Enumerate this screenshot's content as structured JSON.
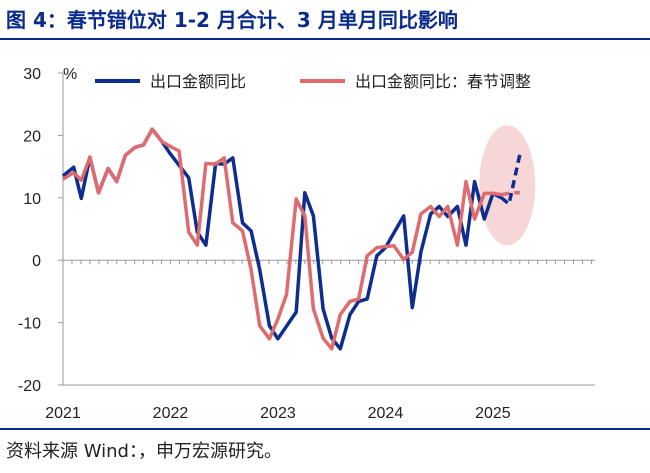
{
  "title": "图 4：春节错位对 1-2 月合计、3 月单月同比影响",
  "source": "资料来源 Wind：，申万宏源研究。",
  "colors": {
    "accent": "#0a2a8c",
    "series_blue": "#0d2d8f",
    "series_red": "#e06b6f",
    "highlight": "#f6d6d6"
  },
  "chart_data": {
    "type": "line",
    "unit": "%",
    "ylim": [
      -20,
      30
    ],
    "yticks": [
      "30",
      "20",
      "10",
      "0",
      "-10",
      "-20"
    ],
    "xticks": [
      "2021",
      "2022",
      "2023",
      "2024",
      "2025"
    ],
    "xlim": [
      2021.0,
      2025.45
    ],
    "series": [
      {
        "name": "出口金额同比",
        "color": "#0d2d8f",
        "points": [
          [
            2021.0,
            13.5
          ],
          [
            2021.1,
            14.9
          ],
          [
            2021.17,
            9.9
          ],
          [
            2021.25,
            16.5
          ],
          [
            2021.33,
            10.8
          ],
          [
            2021.42,
            14.7
          ],
          [
            2021.5,
            12.6
          ],
          [
            2021.58,
            16.8
          ],
          [
            2021.67,
            18.1
          ],
          [
            2021.75,
            18.5
          ],
          [
            2021.83,
            21.0
          ],
          [
            2021.92,
            19.0
          ],
          [
            2022.0,
            17.0
          ],
          [
            2022.17,
            13.2
          ],
          [
            2022.25,
            4.5
          ],
          [
            2022.33,
            2.4
          ],
          [
            2022.42,
            15.5
          ],
          [
            2022.5,
            15.4
          ],
          [
            2022.58,
            16.4
          ],
          [
            2022.67,
            6.0
          ],
          [
            2022.75,
            4.7
          ],
          [
            2022.83,
            -1.5
          ],
          [
            2022.92,
            -10.5
          ],
          [
            2023.0,
            -12.6
          ],
          [
            2023.17,
            -8.3
          ],
          [
            2023.25,
            10.8
          ],
          [
            2023.33,
            7.1
          ],
          [
            2023.42,
            -7.8
          ],
          [
            2023.5,
            -12.5
          ],
          [
            2023.58,
            -14.2
          ],
          [
            2023.67,
            -8.7
          ],
          [
            2023.75,
            -6.6
          ],
          [
            2023.83,
            -6.2
          ],
          [
            2023.92,
            0.7
          ],
          [
            2024.0,
            2.0
          ],
          [
            2024.17,
            7.1
          ],
          [
            2024.25,
            -7.6
          ],
          [
            2024.33,
            1.3
          ],
          [
            2024.42,
            7.4
          ],
          [
            2024.5,
            8.6
          ],
          [
            2024.58,
            7.0
          ],
          [
            2024.67,
            8.6
          ],
          [
            2024.75,
            2.4
          ],
          [
            2024.83,
            12.6
          ],
          [
            2024.92,
            6.6
          ],
          [
            2025.0,
            10.7
          ],
          [
            2025.08,
            10.0
          ]
        ]
      },
      {
        "name": "出口金额同比：春节调整",
        "color": "#e06b6f",
        "points": [
          [
            2021.0,
            13.0
          ],
          [
            2021.1,
            14.0
          ],
          [
            2021.17,
            12.8
          ],
          [
            2021.25,
            16.5
          ],
          [
            2021.33,
            10.8
          ],
          [
            2021.42,
            14.7
          ],
          [
            2021.5,
            12.6
          ],
          [
            2021.58,
            16.8
          ],
          [
            2021.67,
            18.1
          ],
          [
            2021.75,
            18.5
          ],
          [
            2021.83,
            21.0
          ],
          [
            2021.92,
            19.0
          ],
          [
            2022.0,
            18.2
          ],
          [
            2022.08,
            17.5
          ],
          [
            2022.17,
            4.5
          ],
          [
            2022.25,
            2.4
          ],
          [
            2022.33,
            15.5
          ],
          [
            2022.42,
            15.4
          ],
          [
            2022.5,
            16.4
          ],
          [
            2022.58,
            6.0
          ],
          [
            2022.67,
            4.7
          ],
          [
            2022.75,
            -1.5
          ],
          [
            2022.83,
            -10.5
          ],
          [
            2022.92,
            -12.6
          ],
          [
            2023.0,
            -9.4
          ],
          [
            2023.08,
            -5.5
          ],
          [
            2023.17,
            9.8
          ],
          [
            2023.25,
            7.1
          ],
          [
            2023.33,
            -7.8
          ],
          [
            2023.42,
            -12.5
          ],
          [
            2023.5,
            -14.2
          ],
          [
            2023.58,
            -8.7
          ],
          [
            2023.67,
            -6.6
          ],
          [
            2023.75,
            -6.2
          ],
          [
            2023.83,
            0.7
          ],
          [
            2023.92,
            2.0
          ],
          [
            2024.0,
            2.2
          ],
          [
            2024.08,
            2.3
          ],
          [
            2024.17,
            0.1
          ],
          [
            2024.25,
            1.3
          ],
          [
            2024.33,
            7.4
          ],
          [
            2024.42,
            8.6
          ],
          [
            2024.5,
            7.0
          ],
          [
            2024.58,
            8.6
          ],
          [
            2024.67,
            2.4
          ],
          [
            2024.75,
            12.6
          ],
          [
            2024.83,
            6.6
          ],
          [
            2024.92,
            10.7
          ],
          [
            2025.0,
            10.7
          ],
          [
            2025.08,
            10.5
          ]
        ],
        "dashed_points": [
          [
            2025.08,
            10.5
          ],
          [
            2025.17,
            10.8
          ],
          [
            2025.25,
            10.8
          ]
        ]
      }
    ],
    "blue_dashed_points": [
      [
        2025.08,
        10.0
      ],
      [
        2025.15,
        9.0
      ],
      [
        2025.25,
        16.9
      ]
    ],
    "legend": {
      "placement": "top",
      "items": [
        "出口金额同比",
        "出口金额同比：春节调整"
      ]
    },
    "annotation": {
      "type": "ellipse-highlight",
      "center": [
        2025.17,
        12.0
      ]
    },
    "grid": false
  }
}
